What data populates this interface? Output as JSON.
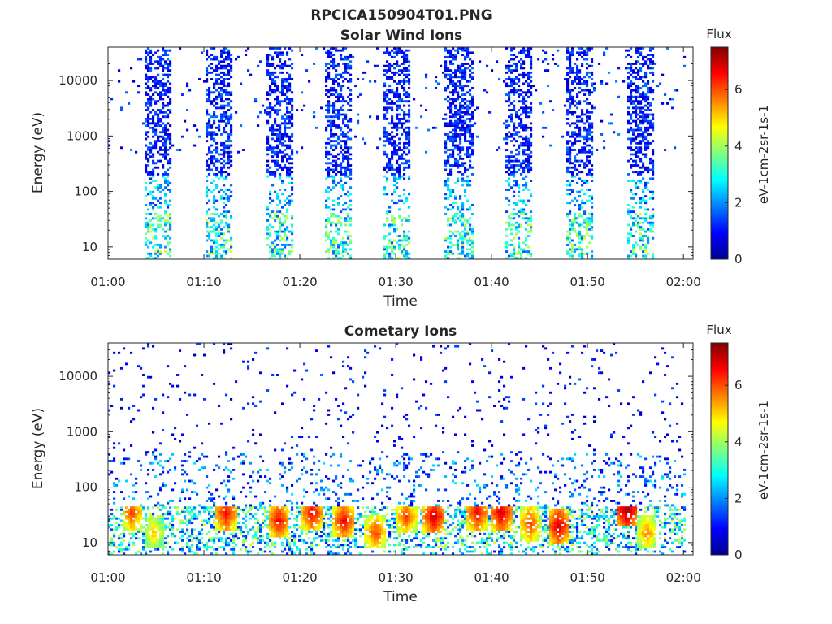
{
  "figure": {
    "title": "RPCICA150904T01.PNG"
  },
  "chart_data": [
    {
      "type": "heatmap",
      "title": "Solar Wind Ions",
      "xlabel": "Time",
      "ylabel": "Energy (eV)",
      "x_ticks": [
        "01:00",
        "01:10",
        "01:20",
        "01:30",
        "01:40",
        "01:50",
        "02:00"
      ],
      "xlim_minutes": [
        0,
        61
      ],
      "y_scale": "log",
      "ylim": [
        6,
        40000
      ],
      "y_ticks": [
        10,
        100,
        1000,
        10000
      ],
      "y_tick_labels": [
        "10",
        "100",
        "1000",
        "10000"
      ],
      "colorbar": {
        "title": "Flux",
        "label": "eV-1cm-2sr-1s-1",
        "range": [
          0,
          7.5
        ],
        "ticks": [
          0,
          2,
          4,
          6
        ],
        "tick_labels": [
          "0",
          "2",
          "4",
          "6"
        ],
        "colormap": "jet"
      },
      "bursts_center_minutes": [
        5.3,
        11.5,
        17.8,
        23.9,
        30.2,
        36.6,
        42.9,
        49.2,
        55.6
      ],
      "bursts_energy_range_eV": [
        6,
        40000
      ],
      "background_level": 1.0,
      "burst_peak_level": 4.5
    },
    {
      "type": "heatmap",
      "title": "Cometary Ions",
      "xlabel": "Time",
      "ylabel": "Energy (eV)",
      "x_ticks": [
        "01:00",
        "01:10",
        "01:20",
        "01:30",
        "01:40",
        "01:50",
        "02:00"
      ],
      "xlim_minutes": [
        0,
        61
      ],
      "y_scale": "log",
      "ylim": [
        6,
        40000
      ],
      "y_ticks": [
        10,
        100,
        1000,
        10000
      ],
      "y_tick_labels": [
        "10",
        "100",
        "1000",
        "10000"
      ],
      "colorbar": {
        "title": "Flux",
        "label": "eV-1cm-2sr-1s-1",
        "range": [
          0,
          7.5
        ],
        "ticks": [
          0,
          2,
          4,
          6
        ],
        "tick_labels": [
          "0",
          "2",
          "4",
          "6"
        ],
        "colormap": "jet"
      },
      "band_energy_range_eV": [
        8,
        45
      ],
      "hotspots": [
        {
          "minute": 2.5,
          "energy_eV": 35,
          "level": 6.0
        },
        {
          "minute": 4.8,
          "energy_eV": 15,
          "level": 5.0
        },
        {
          "minute": 12.3,
          "energy_eV": 35,
          "level": 6.5
        },
        {
          "minute": 17.8,
          "energy_eV": 25,
          "level": 6.5
        },
        {
          "minute": 21.3,
          "energy_eV": 35,
          "level": 6.5
        },
        {
          "minute": 24.6,
          "energy_eV": 25,
          "level": 6.5
        },
        {
          "minute": 27.9,
          "energy_eV": 15,
          "level": 6.0
        },
        {
          "minute": 31.1,
          "energy_eV": 30,
          "level": 6.0
        },
        {
          "minute": 34.0,
          "energy_eV": 30,
          "level": 6.8
        },
        {
          "minute": 38.5,
          "energy_eV": 35,
          "level": 6.5
        },
        {
          "minute": 41.0,
          "energy_eV": 35,
          "level": 6.8
        },
        {
          "minute": 44.0,
          "energy_eV": 22,
          "level": 6.0
        },
        {
          "minute": 47.0,
          "energy_eV": 20,
          "level": 6.8
        },
        {
          "minute": 54.1,
          "energy_eV": 40,
          "level": 7.2
        },
        {
          "minute": 56.2,
          "energy_eV": 15,
          "level": 5.5
        }
      ],
      "background_level": 1.2
    }
  ]
}
